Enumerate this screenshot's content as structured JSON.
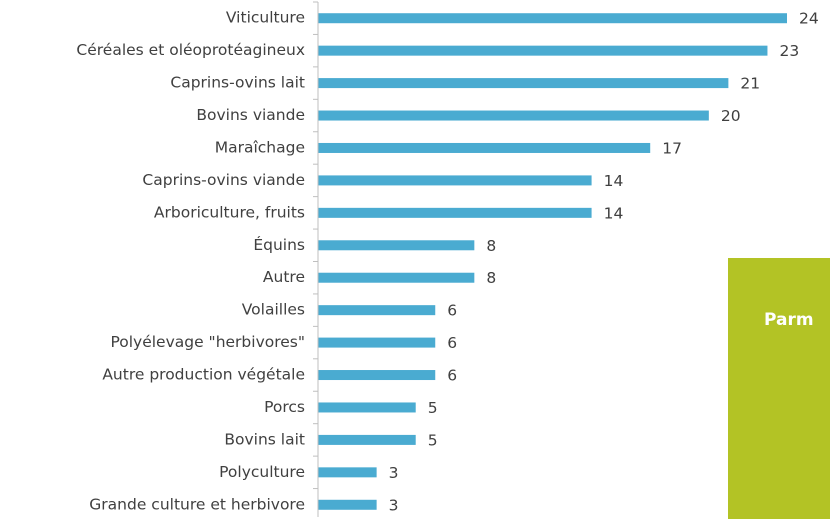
{
  "chart_data": {
    "type": "bar",
    "orientation": "horizontal",
    "categories": [
      "Viticulture",
      "Céréales et oléoprotéagineux",
      "Caprins-ovins lait",
      "Bovins viande",
      "Maraîchage",
      "Caprins-ovins viande",
      "Arboriculture, fruits",
      "Équins",
      "Autre",
      "Volailles",
      "Polyélevage \"herbivores\"",
      "Autre production végétale",
      "Porcs",
      "Bovins lait",
      "Polyculture",
      "Grande culture et herbivore"
    ],
    "values": [
      24,
      23,
      21,
      20,
      17,
      14,
      14,
      8,
      8,
      6,
      6,
      6,
      5,
      5,
      3,
      3
    ],
    "color": "#4aabd1",
    "xlim": [
      0,
      24
    ],
    "annotation": "Parm"
  }
}
